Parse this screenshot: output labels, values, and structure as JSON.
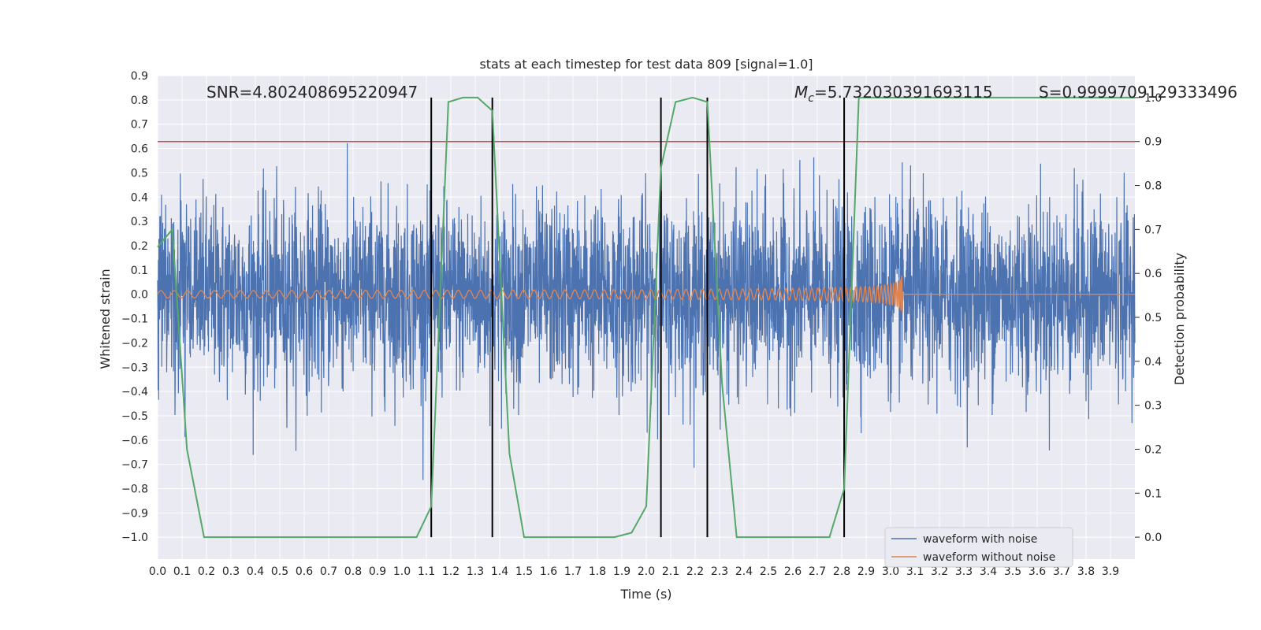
{
  "chart_data": {
    "type": "line",
    "title": "stats at each timestep for test data 809 [signal=1.0]",
    "xlabel": "Time (s)",
    "ylabel": "Whitened strain",
    "y2label": "Detection probability",
    "xlim": [
      0.0,
      4.0
    ],
    "ylim": [
      -1.09,
      0.9
    ],
    "y2lim": [
      -0.05,
      1.05
    ],
    "grid": true,
    "legend_position": "lower-right",
    "xticks": [
      0.0,
      0.1,
      0.2,
      0.3,
      0.4,
      0.5,
      0.6,
      0.7,
      0.8,
      0.9,
      1.0,
      1.1,
      1.2,
      1.3,
      1.4,
      1.5,
      1.6,
      1.7,
      1.8,
      1.9,
      2.0,
      2.1,
      2.2,
      2.3,
      2.4,
      2.5,
      2.6,
      2.7,
      2.8,
      2.9,
      3.0,
      3.1,
      3.2,
      3.3,
      3.4,
      3.5,
      3.6,
      3.7,
      3.8,
      3.9
    ],
    "yticks": [
      0.9,
      0.8,
      0.7,
      0.6,
      0.5,
      0.4,
      0.3,
      0.2,
      0.1,
      0.0,
      -0.1,
      -0.2,
      -0.3,
      -0.4,
      -0.5,
      -0.6,
      -0.7,
      -0.8,
      -0.9,
      -1.0
    ],
    "y2ticks": [
      0.0,
      0.1,
      0.2,
      0.3,
      0.4,
      0.5,
      0.6,
      0.7,
      0.8,
      0.9,
      1.0
    ],
    "annotations": {
      "snr": "SNR=4.802408695220947",
      "mc_symbol": "M",
      "mc_subscript": "c",
      "mc_value": "=5.732030391693115",
      "stat": "S=0.9999709129333496"
    },
    "threshold": {
      "value": 0.9,
      "axis": "y2",
      "color": "#c44e52"
    },
    "vertical_lines": [
      1.12,
      1.37,
      2.06,
      2.25,
      2.81
    ],
    "series": [
      {
        "name": "waveform with noise",
        "color": "#4c72b0",
        "kind": "noise",
        "t_range": [
          0.0,
          4.0
        ],
        "amplitude_std": 0.19,
        "samples": 4000
      },
      {
        "name": "waveform without noise",
        "color": "#dd8452",
        "kind": "chirp",
        "t_range": [
          0.0,
          3.05
        ],
        "t_merger": 3.05,
        "amplitude_start": 0.015,
        "amplitude_end": 0.09,
        "frequency_start": 18,
        "frequency_end": 160
      },
      {
        "name": "detection probability",
        "color": "#55a868",
        "axis": "y2",
        "x": [
          0.0,
          0.06,
          0.12,
          0.19,
          0.25,
          0.31,
          0.37,
          0.44,
          0.5,
          0.56,
          0.62,
          0.69,
          0.75,
          0.81,
          0.87,
          0.94,
          1.0,
          1.06,
          1.12,
          1.19,
          1.25,
          1.31,
          1.37,
          1.44,
          1.5,
          1.56,
          1.62,
          1.69,
          1.75,
          1.81,
          1.87,
          1.94,
          2.0,
          2.06,
          2.12,
          2.19,
          2.25,
          2.31,
          2.37,
          2.44,
          2.5,
          2.56,
          2.62,
          2.69,
          2.75,
          2.81,
          2.87,
          2.94,
          3.0,
          3.5,
          4.0
        ],
        "y": [
          0.66,
          0.7,
          0.2,
          0.0,
          0.0,
          0.0,
          0.0,
          0.0,
          0.0,
          0.0,
          0.0,
          0.0,
          0.0,
          0.0,
          0.0,
          0.0,
          0.0,
          0.0,
          0.07,
          0.99,
          1.0,
          1.0,
          0.97,
          0.19,
          0.0,
          0.0,
          0.0,
          0.0,
          0.0,
          0.0,
          0.0,
          0.01,
          0.07,
          0.84,
          0.99,
          1.0,
          0.99,
          0.35,
          0.0,
          0.0,
          0.0,
          0.0,
          0.0,
          0.0,
          0.0,
          0.11,
          1.0,
          1.0,
          1.0,
          1.0,
          1.0
        ]
      }
    ],
    "legend": [
      "waveform with noise",
      "waveform without noise"
    ],
    "colors": {
      "plot_bg": "#eaeaf2",
      "grid": "#ffffff",
      "vline": "#000000"
    }
  }
}
